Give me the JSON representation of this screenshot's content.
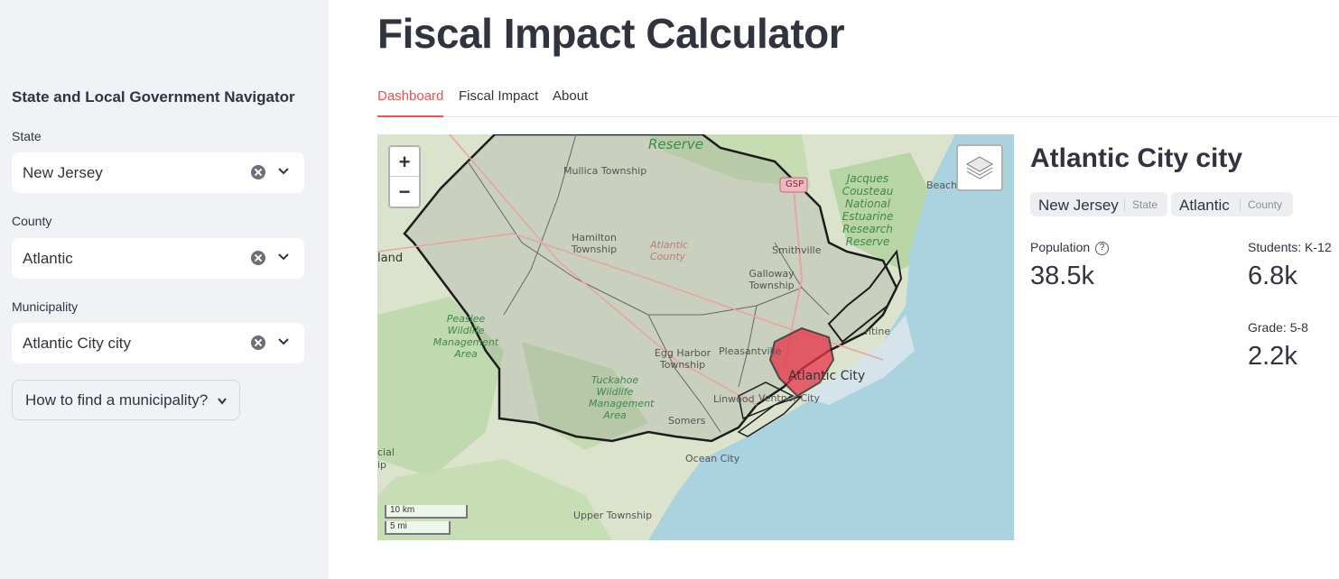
{
  "sidebar": {
    "title": "State and Local Government Navigator",
    "state_label": "State",
    "state_value": "New Jersey",
    "county_label": "County",
    "county_value": "Atlantic",
    "municipality_label": "Municipality",
    "municipality_value": "Atlantic City city",
    "help_expander": "How to find a municipality?"
  },
  "header": {
    "title": "Fiscal Impact Calculator"
  },
  "tabs": [
    {
      "label": "Dashboard",
      "active": true
    },
    {
      "label": "Fiscal Impact",
      "active": false
    },
    {
      "label": "About",
      "active": false
    }
  ],
  "map": {
    "zoom_in": "+",
    "zoom_out": "−",
    "scale_km": "10 km",
    "scale_mi": "5 mi",
    "labels": {
      "reserve": "Reserve",
      "mullica": "Mullica Township",
      "hamilton": "Hamilton Township",
      "atlantic_county": "Atlantic County",
      "smithville": "Smithville",
      "galloway": "Galloway Township",
      "egg_harbor": "Egg Harbor Township",
      "pleasantville": "Pleasantville",
      "atlantic_city": "Atlantic City",
      "ventnor": "Ventnor City",
      "linwood": "Linwood",
      "somers": "Somers",
      "ocean_city": "Ocean City",
      "upper_township": "Upper Township",
      "beach": "Beach",
      "gsp": "GSP",
      "peaslee": "Peaslee Wildlife Management Area",
      "tuckahoe": "Tuckahoe Wildlife Management Area",
      "jacques": "Jacques Cousteau National Estuarine Research Reserve",
      "brigantine": "ntine",
      "land": "land",
      "cial": "cial",
      "ip": "ip"
    },
    "colors": {
      "selected": "#e8334a",
      "water": "#aad3df",
      "land": "#d8dfc8"
    }
  },
  "panel": {
    "place_name": "Atlantic City city",
    "state_badge": "New Jersey",
    "state_badge_sub": "State",
    "county_badge": "Atlantic",
    "county_badge_sub": "County",
    "population_label": "Population",
    "population_value": "38.5k",
    "students_label": "Students: K-12",
    "students_value": "6.8k",
    "grade_label": "Grade: 5-8",
    "grade_value": "2.2k"
  },
  "accent_color": "#ff4b4b"
}
